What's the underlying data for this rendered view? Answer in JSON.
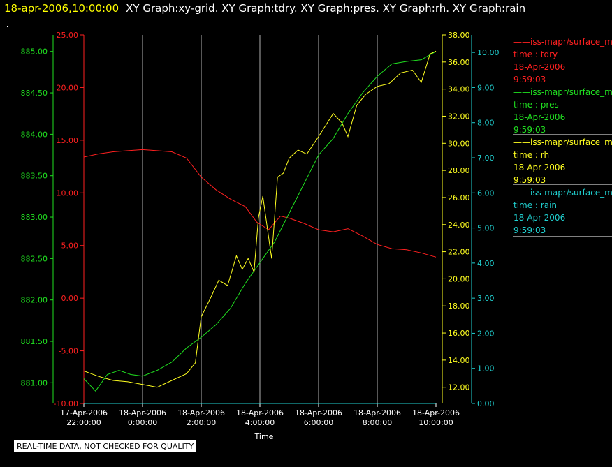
{
  "header": {
    "timestamp": "18-apr-2006,10:00:00",
    "title": "XY Graph:xy-grid.  XY Graph:tdry.  XY Graph:pres.  XY Graph:rh.  XY Graph:rain"
  },
  "footer": "REAL-TIME DATA, NOT CHECKED FOR QUALITY",
  "legend": [
    {
      "name": "iss-mapr/surface_met",
      "field": "time : tdry",
      "date": "18-Apr-2006",
      "time": "9:59:03",
      "color": "#ff2020"
    },
    {
      "name": "iss-mapr/surface_met",
      "field": "time : pres",
      "date": "18-Apr-2006",
      "time": "9:59:03",
      "color": "#20e020"
    },
    {
      "name": "iss-mapr/surface_met",
      "field": "time : rh",
      "date": "18-Apr-2006",
      "time": "9:59:03",
      "color": "#ffff20"
    },
    {
      "name": "iss-mapr/surface_met",
      "field": "time : rain",
      "date": "18-Apr-2006",
      "time": "9:59:03",
      "color": "#20d0d0"
    }
  ],
  "chart_data": {
    "type": "line",
    "xlabel": "Time",
    "xlim": [
      -2,
      10
    ],
    "x_ticks": [
      {
        "date": "17-Apr-2006",
        "time": "22:00:00"
      },
      {
        "date": "18-Apr-2006",
        "time": "0:00:00"
      },
      {
        "date": "18-Apr-2006",
        "time": "2:00:00"
      },
      {
        "date": "18-Apr-2006",
        "time": "4:00:00"
      },
      {
        "date": "18-Apr-2006",
        "time": "6:00:00"
      },
      {
        "date": "18-Apr-2006",
        "time": "8:00:00"
      },
      {
        "date": "18-Apr-2006",
        "time": "10:00:00"
      }
    ],
    "grid": "vertical",
    "axes": {
      "tdry": {
        "side": "left-outer",
        "color": "#ff2020",
        "ylim": [
          -10,
          25
        ],
        "ticks": [
          "-10.00",
          "-5.00",
          "0.00",
          "5.00",
          "10.00",
          "15.00",
          "20.00",
          "25.00"
        ]
      },
      "pres": {
        "side": "left-inner",
        "color": "#20e020",
        "ylim": [
          880.75,
          885.2
        ],
        "ticks": [
          "881.00",
          "881.50",
          "882.00",
          "882.50",
          "883.00",
          "883.50",
          "884.00",
          "884.50",
          "885.00"
        ]
      },
      "rh": {
        "side": "right-inner",
        "color": "#ffff20",
        "ylim": [
          10.8,
          38.0
        ],
        "ticks": [
          "12.00",
          "14.00",
          "16.00",
          "18.00",
          "20.00",
          "22.00",
          "24.00",
          "26.00",
          "28.00",
          "30.00",
          "32.00",
          "34.00",
          "36.00",
          "38.00"
        ]
      },
      "rain": {
        "side": "right-outer",
        "color": "#20d0d0",
        "ylim": [
          0,
          10.5
        ],
        "ticks": [
          "0.00",
          "1.00",
          "2.00",
          "3.00",
          "4.00",
          "5.00",
          "6.00",
          "7.00",
          "8.00",
          "9.00",
          "10.00"
        ]
      }
    },
    "series": [
      {
        "name": "tdry",
        "axis": "tdry",
        "color": "#ff2020",
        "x": [
          -2,
          -1.5,
          -1,
          -0.5,
          0,
          0.5,
          1,
          1.5,
          2,
          2.5,
          3,
          3.5,
          3.9,
          4.3,
          4.7,
          5,
          5.5,
          6,
          6.5,
          7,
          7.5,
          8,
          8.5,
          9,
          9.5,
          10
        ],
        "y": [
          13.4,
          13.7,
          13.9,
          14,
          14.1,
          14,
          13.9,
          13.3,
          11.5,
          10.3,
          9.4,
          8.7,
          7.2,
          6.5,
          7.8,
          7.6,
          7.1,
          6.5,
          6.3,
          6.6,
          5.9,
          5.1,
          4.7,
          4.6,
          4.3,
          3.9
        ]
      },
      {
        "name": "pres",
        "axis": "pres",
        "color": "#20e020",
        "x": [
          -2,
          -1.6,
          -1.2,
          -0.8,
          -0.4,
          0,
          0.5,
          1,
          1.5,
          2,
          2.5,
          3,
          3.5,
          4,
          4.5,
          5,
          5.5,
          6,
          6.5,
          7,
          7.5,
          8,
          8.5,
          9,
          9.5,
          10
        ],
        "y": [
          881.05,
          880.9,
          881.1,
          881.15,
          881.1,
          881.08,
          881.15,
          881.25,
          881.42,
          881.55,
          881.7,
          881.9,
          882.2,
          882.45,
          882.7,
          883.05,
          883.4,
          883.75,
          883.95,
          884.25,
          884.5,
          884.7,
          884.85,
          884.88,
          884.9,
          885.0
        ]
      },
      {
        "name": "rh",
        "axis": "rh",
        "color": "#ffff20",
        "x": [
          -2,
          -1.5,
          -1,
          -0.5,
          0,
          0.5,
          1,
          1.5,
          1.8,
          2,
          2.3,
          2.6,
          2.9,
          3.2,
          3.4,
          3.6,
          3.8,
          3.95,
          4.1,
          4.4,
          4.6,
          4.8,
          5,
          5.3,
          5.6,
          6,
          6.5,
          6.8,
          7,
          7.3,
          7.6,
          8,
          8.4,
          8.8,
          9.2,
          9.5,
          9.8,
          10
        ],
        "y": [
          13.2,
          12.8,
          12.5,
          12.4,
          12.2,
          12.0,
          12.5,
          13,
          13.8,
          17.2,
          18.5,
          19.9,
          19.5,
          21.7,
          20.7,
          21.5,
          20.5,
          24.5,
          26.1,
          21.5,
          27.5,
          27.8,
          28.9,
          29.5,
          29.2,
          30.5,
          32.2,
          31.5,
          30.5,
          32.8,
          33.6,
          34.2,
          34.4,
          35.2,
          35.4,
          34.5,
          36.6,
          36.8
        ]
      },
      {
        "name": "rain",
        "axis": "rain",
        "color": "#20d0d0",
        "x": [
          -2,
          10
        ],
        "y": [
          0,
          0
        ]
      }
    ]
  }
}
